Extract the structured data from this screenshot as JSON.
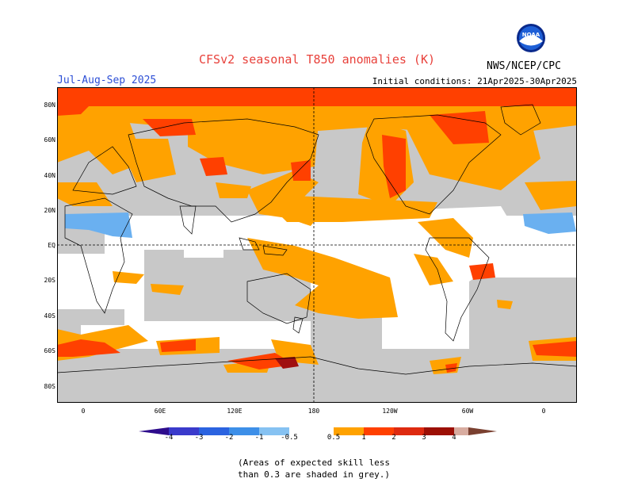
{
  "title": "CFSv2 seasonal T850 anomalies (K)",
  "season": "Jul-Aug-Sep 2025",
  "initial_conditions": "Initial conditions: 21Apr2025-30Apr2025",
  "agency": "NWS/NCEP/CPC",
  "logo_text": "NOAA",
  "map": {
    "lat_labels": [
      "80N",
      "60N",
      "40N",
      "20N",
      "EQ",
      "20S",
      "40S",
      "60S",
      "80S"
    ],
    "lon_labels": [
      "0",
      "60E",
      "120E",
      "180",
      "120W",
      "60W",
      "0"
    ]
  },
  "colorbar": {
    "labels": [
      "-4",
      "-3",
      "-2",
      "-1",
      "-0.5",
      "0.5",
      "1",
      "2",
      "3",
      "4"
    ],
    "colors": {
      "lt_m4": "#2e0c8c",
      "m4_m3": "#3a3acb",
      "m3_m2": "#2b63e0",
      "m2_m1": "#3d8fe8",
      "m1_m05": "#86c2f2",
      "neutral": "#ffffff",
      "p05_p1": "#ffa200",
      "p1_p2": "#ff4000",
      "p2_p3": "#de2a10",
      "p3_p4": "#9c0f05",
      "gt_p4": "#d8aca0",
      "beyond": "#7a4030"
    }
  },
  "map_colors": {
    "low_skill_grey": "#c8c8c8",
    "positive_anomaly": "#ffa200",
    "strong_positive": "#ff4000",
    "very_strong": "#a01010",
    "negative_anomaly": "#6ab0f0"
  },
  "note_line1": "(Areas of expected skill less",
  "note_line2": "than 0.3 are shaded in grey.)"
}
